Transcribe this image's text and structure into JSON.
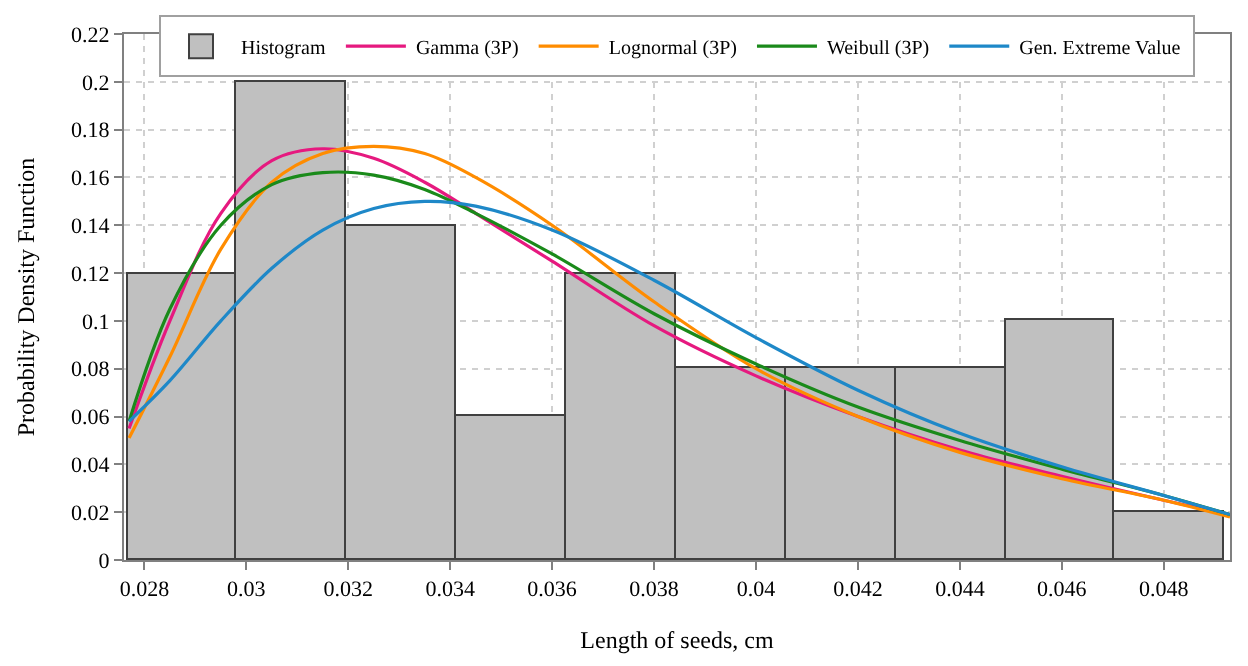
{
  "chart_data": {
    "type": "histogram",
    "xlabel": "Length of seeds, cm",
    "ylabel": "Probability Density Function",
    "bins": [
      0.02766,
      0.02981,
      0.03197,
      0.03412,
      0.03627,
      0.03843,
      0.04058,
      0.04273,
      0.04489,
      0.04704,
      0.04919
    ],
    "series": [
      {
        "name": "Histogram",
        "color": "#c0c0c0",
        "values": [
          0.12,
          0.2,
          0.14,
          0.06,
          0.12,
          0.08,
          0.08,
          0.08,
          0.1,
          0.02
        ]
      },
      {
        "type": "line",
        "name": "Gamma (3P)",
        "color": "#e6197f",
        "x": [
          0.0277,
          0.0285,
          0.0295,
          0.0305,
          0.0315,
          0.0325,
          0.0335,
          0.0345,
          0.036,
          0.038,
          0.04,
          0.042,
          0.044,
          0.046,
          0.048,
          0.0493
        ],
        "values": [
          0.055,
          0.1,
          0.145,
          0.167,
          0.172,
          0.168,
          0.158,
          0.145,
          0.125,
          0.098,
          0.077,
          0.06,
          0.046,
          0.035,
          0.025,
          0.019
        ]
      },
      {
        "type": "line",
        "name": "Lognormal (3P)",
        "color": "#ff8c00",
        "x": [
          0.0277,
          0.0285,
          0.0295,
          0.0305,
          0.0315,
          0.0325,
          0.0335,
          0.0345,
          0.036,
          0.038,
          0.04,
          0.042,
          0.044,
          0.046,
          0.048,
          0.0493
        ],
        "values": [
          0.051,
          0.085,
          0.13,
          0.158,
          0.17,
          0.173,
          0.17,
          0.16,
          0.14,
          0.108,
          0.08,
          0.06,
          0.045,
          0.034,
          0.025,
          0.018
        ]
      },
      {
        "type": "line",
        "name": "Weibull (3P)",
        "color": "#1a8a1a",
        "x": [
          0.0277,
          0.0285,
          0.0295,
          0.0305,
          0.0315,
          0.0325,
          0.0335,
          0.0345,
          0.036,
          0.038,
          0.04,
          0.042,
          0.044,
          0.046,
          0.048,
          0.0493
        ],
        "values": [
          0.058,
          0.105,
          0.14,
          0.157,
          0.162,
          0.161,
          0.155,
          0.145,
          0.128,
          0.103,
          0.082,
          0.064,
          0.05,
          0.038,
          0.027,
          0.019
        ]
      },
      {
        "type": "line",
        "name": "Gen. Extreme Value",
        "color": "#1e88c8",
        "x": [
          0.0277,
          0.0285,
          0.0295,
          0.0305,
          0.0315,
          0.0325,
          0.0335,
          0.0345,
          0.036,
          0.038,
          0.04,
          0.042,
          0.044,
          0.046,
          0.048,
          0.0493
        ],
        "values": [
          0.058,
          0.075,
          0.1,
          0.122,
          0.138,
          0.147,
          0.15,
          0.148,
          0.138,
          0.117,
          0.093,
          0.071,
          0.053,
          0.039,
          0.027,
          0.019
        ]
      }
    ],
    "xlim": [
      0.0276,
      0.0493
    ],
    "xticks": [
      0.028,
      0.03,
      0.032,
      0.034,
      0.036,
      0.038,
      0.04,
      0.042,
      0.044,
      0.046,
      0.048
    ],
    "ylim": [
      0,
      0.22
    ],
    "yticks": [
      0,
      0.02,
      0.04,
      0.06,
      0.08,
      0.1,
      0.12,
      0.14,
      0.16,
      0.18,
      0.2,
      0.22
    ],
    "grid": true,
    "legend": "top",
    "line_style": "solid",
    "marker": "none"
  }
}
